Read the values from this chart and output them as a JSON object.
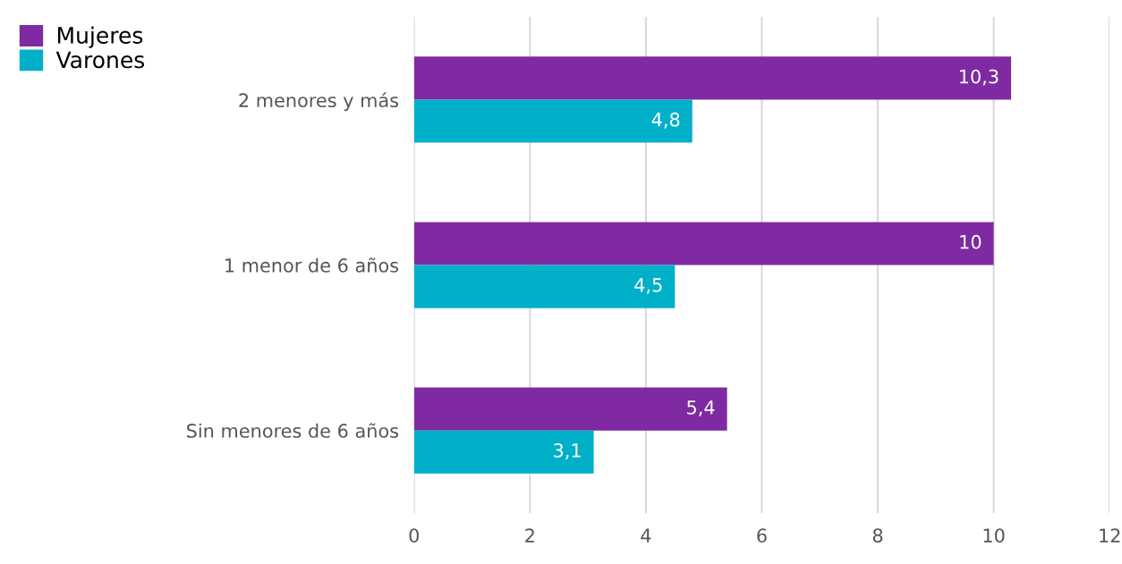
{
  "chart_data": {
    "type": "bar",
    "orientation": "horizontal",
    "categories": [
      "2 menores y más",
      "1 menor de 6 años",
      "Sin menores de 6 años"
    ],
    "series": [
      {
        "name": "Mujeres",
        "color": "#7f2aa3",
        "values": [
          10.3,
          10,
          5.4
        ],
        "value_labels": [
          "10,3",
          "10",
          "5,4"
        ]
      },
      {
        "name": "Varones",
        "color": "#00b0c8",
        "values": [
          4.8,
          4.5,
          3.1
        ],
        "value_labels": [
          "4,8",
          "4,5",
          "3,1"
        ]
      }
    ],
    "xlim": [
      0,
      12
    ],
    "xticks": [
      0,
      2,
      4,
      6,
      8,
      10,
      12
    ],
    "grid": "x",
    "legend": "top left"
  }
}
